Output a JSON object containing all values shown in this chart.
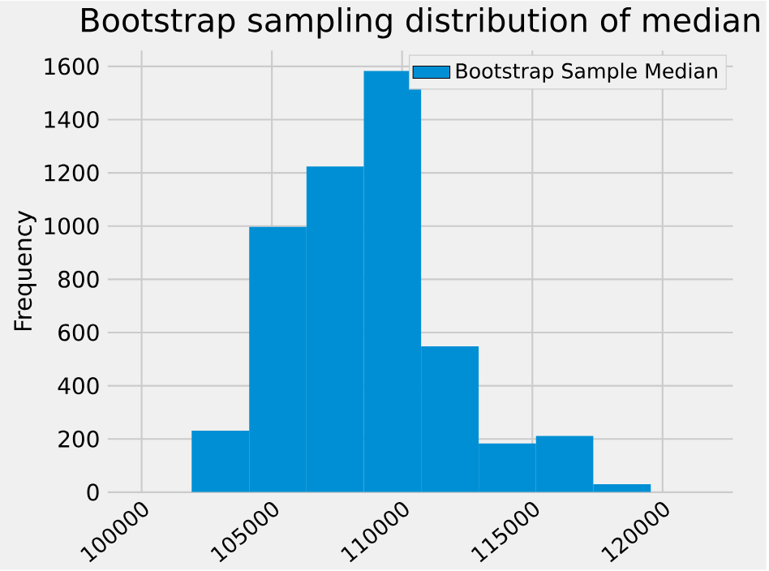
{
  "chart_data": {
    "type": "histogram",
    "title": "Bootstrap sampling distribution of median",
    "ylabel": "Frequency",
    "bins": [
      101920,
      104130,
      106330,
      108530,
      110730,
      112940,
      115140,
      117340,
      119550
    ],
    "series": [
      {
        "name": "Bootstrap Sample Median",
        "color": "#008fd5",
        "values": [
          231,
          997,
          1224,
          1583,
          548,
          183,
          211,
          30
        ]
      }
    ],
    "xlim": [
      98700,
      122700
    ],
    "xticks": [
      100000,
      105000,
      110000,
      115000,
      120000
    ],
    "ylim": [
      0,
      1660
    ],
    "yticks": [
      0,
      200,
      400,
      600,
      800,
      1000,
      1200,
      1400,
      1600
    ],
    "grid": true,
    "legend": "top right"
  }
}
